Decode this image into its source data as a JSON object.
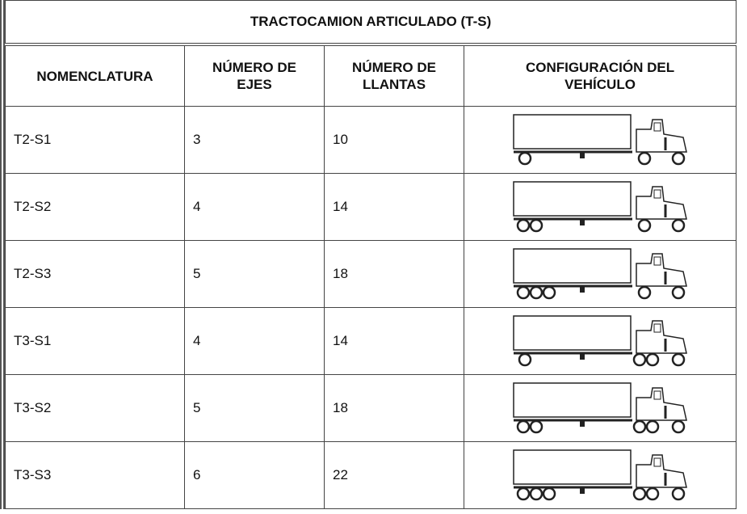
{
  "table": {
    "title": "TRACTOCAMION ARTICULADO (T-S)",
    "headers": [
      "NOMENCLATURA",
      "NÚMERO DE\nEJES",
      "NÚMERO DE\nLLANTAS",
      "CONFIGURACIÓN DEL\nVEHÍCULO"
    ],
    "rows": [
      [
        "T2-S1",
        3,
        10
      ],
      [
        "T2-S2",
        4,
        14
      ],
      [
        "T2-S3",
        5,
        18
      ],
      [
        "T3-S1",
        4,
        14
      ],
      [
        "T3-S2",
        5,
        18
      ],
      [
        "T3-S3",
        6,
        22
      ]
    ]
  }
}
